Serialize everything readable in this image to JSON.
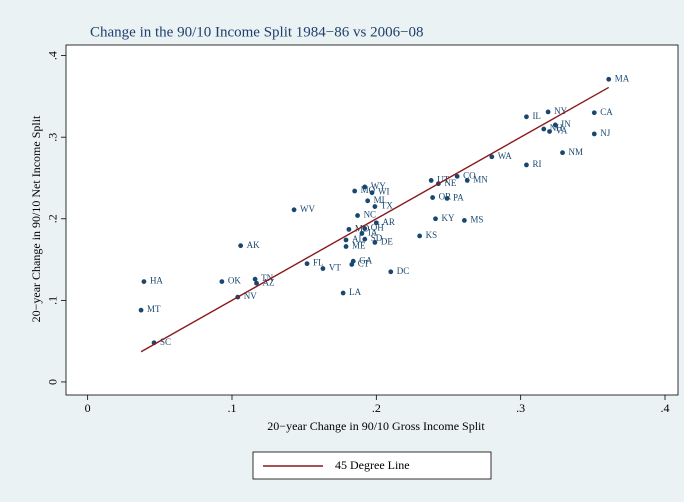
{
  "chart_data": {
    "type": "scatter",
    "title": "Change in the 90/10 Income Split 1984−86 vs 2006−08",
    "xlabel": "20−year Change in 90/10 Gross Income Split",
    "ylabel": "20−year Change in 90/10  Net Income Split",
    "color": "#1a476f",
    "labels": [
      "MA",
      "CA",
      "NJ",
      "NY",
      "IL",
      "IN",
      "NH",
      "VA",
      "NM",
      "RI",
      "WA",
      "CO",
      "MN",
      "UT",
      "NE",
      "WY",
      "MO",
      "WI",
      "WV",
      "MI",
      "TX",
      "NC",
      "OR",
      "PA",
      "AR",
      "KY",
      "MS",
      "MD",
      "OH",
      "AL",
      "IA",
      "SD",
      "DE",
      "ME",
      "KS",
      "AK",
      "FL",
      "VT",
      "GA",
      "CT",
      "DC",
      "TN",
      "AZ",
      "OK",
      "HA",
      "NV",
      "LA",
      "MT",
      "SC"
    ],
    "x": [
      0.361,
      0.351,
      0.351,
      0.319,
      0.304,
      0.324,
      0.316,
      0.32,
      0.329,
      0.304,
      0.28,
      0.256,
      0.263,
      0.238,
      0.243,
      0.192,
      0.185,
      0.197,
      0.143,
      0.194,
      0.199,
      0.187,
      0.239,
      0.249,
      0.2,
      0.241,
      0.261,
      0.181,
      0.192,
      0.179,
      0.19,
      0.192,
      0.199,
      0.179,
      0.23,
      0.106,
      0.152,
      0.163,
      0.184,
      0.183,
      0.21,
      0.116,
      0.117,
      0.093,
      0.039,
      0.104,
      0.177,
      0.037,
      0.046
    ],
    "y": [
      0.371,
      0.33,
      0.304,
      0.331,
      0.325,
      0.315,
      0.31,
      0.307,
      0.281,
      0.266,
      0.276,
      0.252,
      0.247,
      0.247,
      0.243,
      0.239,
      0.234,
      0.232,
      0.211,
      0.222,
      0.215,
      0.204,
      0.226,
      0.225,
      0.195,
      0.2,
      0.198,
      0.187,
      0.188,
      0.174,
      0.182,
      0.175,
      0.171,
      0.166,
      0.179,
      0.167,
      0.145,
      0.139,
      0.148,
      0.144,
      0.135,
      0.126,
      0.121,
      0.123,
      0.123,
      0.104,
      0.109,
      0.088,
      0.048
    ],
    "line": {
      "name": "45 Degree Line",
      "color": "#8b1a1a"
    },
    "xlim": [
      -0.015,
      0.409
    ],
    "ylim": [
      -0.016,
      0.413
    ],
    "xticks": [
      0,
      {
        "value": 0.1,
        "label": ".1"
      },
      {
        "value": 0.2,
        "label": ".2"
      },
      {
        "value": 0.3,
        "label": ".3"
      },
      {
        "value": 0.4,
        "label": ".4"
      }
    ],
    "yticks": [
      0,
      {
        "value": 0.1,
        "label": ".1"
      },
      {
        "value": 0.2,
        "label": ".2"
      },
      {
        "value": 0.3,
        "label": ".3"
      },
      {
        "value": 0.4,
        "label": ".4"
      }
    ],
    "grid": false
  }
}
